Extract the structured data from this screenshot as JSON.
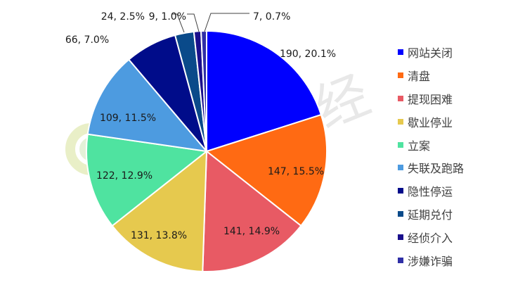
{
  "chart_data": {
    "type": "pie",
    "slices": [
      {
        "name": "网站关闭",
        "value": 190,
        "percent": "20.1%",
        "color": "#0000ff"
      },
      {
        "name": "清盘",
        "value": 147,
        "percent": "15.5%",
        "color": "#ff6a13"
      },
      {
        "name": "提现困难",
        "value": 141,
        "percent": "14.9%",
        "color": "#e85a64"
      },
      {
        "name": "歇业停业",
        "value": 131,
        "percent": "13.8%",
        "color": "#e6c94e"
      },
      {
        "name": "立案",
        "value": 122,
        "percent": "12.9%",
        "color": "#4fe3a0"
      },
      {
        "name": "失联及跑路",
        "value": 109,
        "percent": "11.5%",
        "color": "#4d9be0"
      },
      {
        "name": "隐性停运",
        "value": 66,
        "percent": "7.0%",
        "color": "#000c8a"
      },
      {
        "name": "延期兑付",
        "value": 24,
        "percent": "2.5%",
        "color": "#0a4a8a"
      },
      {
        "name": "经侦介入",
        "value": 9,
        "percent": "1.0%",
        "color": "#1a0f8c"
      },
      {
        "name": "涉嫌诈骗",
        "value": 7,
        "percent": "0.7%",
        "color": "#2f2fa6"
      }
    ],
    "data_labels": [
      "190, 20.1%",
      "147, 15.5%",
      "141, 14.9%",
      "131, 13.8%",
      "122, 12.9%",
      "109, 11.5%",
      "66, 7.0%",
      "24, 2.5%",
      "9, 1.0%",
      "7, 0.7%"
    ],
    "legend_position": "right"
  },
  "watermark": {
    "text": "零壹财经",
    "color": "#d9d9d9"
  }
}
